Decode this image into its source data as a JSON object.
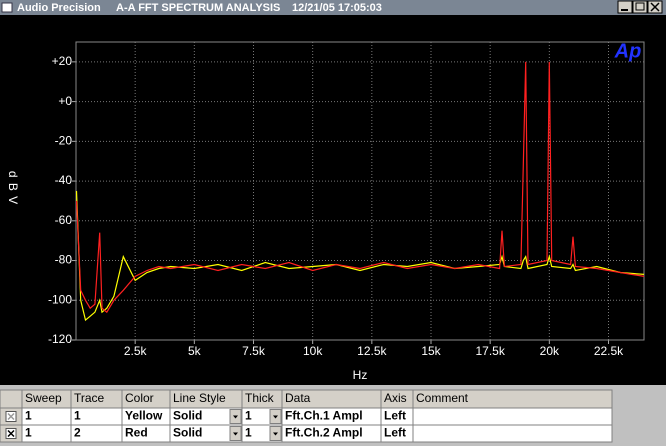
{
  "window": {
    "app": "Audio Precision",
    "title": "A-A FFT SPECTRUM ANALYSIS",
    "timestamp": "12/21/05 17:05:03"
  },
  "chart_data": {
    "type": "line",
    "ylabel": "d B V",
    "xlabel": "Hz",
    "logo": "Ap",
    "xlim": [
      0,
      24000
    ],
    "ylim": [
      -120,
      30
    ],
    "xticks": [
      {
        "value": 2500,
        "label": "2.5k"
      },
      {
        "value": 5000,
        "label": "5k"
      },
      {
        "value": 7500,
        "label": "7.5k"
      },
      {
        "value": 10000,
        "label": "10k"
      },
      {
        "value": 12500,
        "label": "12.5k"
      },
      {
        "value": 15000,
        "label": "15k"
      },
      {
        "value": 17500,
        "label": "17.5k"
      },
      {
        "value": 20000,
        "label": "20k"
      },
      {
        "value": 22500,
        "label": "22.5k"
      }
    ],
    "yticks": [
      {
        "value": 20,
        "label": "+20"
      },
      {
        "value": 0,
        "label": "+0"
      },
      -20,
      -40,
      -60,
      -80,
      -100,
      -120
    ],
    "grid": true,
    "x": [
      20,
      200,
      400,
      600,
      800,
      1000,
      1100,
      1300,
      1600,
      2000,
      2500,
      3000,
      3500,
      4000,
      5000,
      6000,
      7000,
      8000,
      9000,
      10000,
      11000,
      12000,
      13000,
      14000,
      15000,
      16000,
      17000,
      17900,
      18000,
      18100,
      18800,
      18900,
      19000,
      19100,
      19900,
      20000,
      20100,
      20900,
      21000,
      21100,
      22000,
      23000,
      24000
    ],
    "series": [
      {
        "color": "#ffff00",
        "values": [
          -45,
          -100,
          -110,
          -108,
          -106,
          -100,
          -106,
          -104,
          -98,
          -78,
          -90,
          -86,
          -84,
          -83,
          -84,
          -82,
          -85,
          -81,
          -84,
          -83,
          -82,
          -85,
          -82,
          -83,
          -81,
          -84,
          -83,
          -82,
          -78,
          -83,
          -84,
          -80,
          -78,
          -84,
          -82,
          -78,
          -83,
          -84,
          -82,
          -85,
          -83,
          -86,
          -87
        ]
      },
      {
        "color": "#ff2020",
        "values": [
          -50,
          -95,
          -100,
          -104,
          -102,
          -66,
          -104,
          -106,
          -100,
          -95,
          -88,
          -85,
          -83,
          -84,
          -82,
          -85,
          -82,
          -84,
          -81,
          -85,
          -82,
          -84,
          -81,
          -84,
          -82,
          -84,
          -82,
          -84,
          -65,
          -83,
          -82,
          -32,
          20,
          -82,
          -80,
          20,
          -80,
          -82,
          -68,
          -83,
          -84,
          -86,
          -88
        ]
      }
    ]
  },
  "table": {
    "headers": [
      "Sweep",
      "Trace",
      "Color",
      "Line Style",
      "Thick",
      "Data",
      "Axis",
      "Comment"
    ],
    "rows": [
      [
        "1",
        "1",
        "Yellow",
        "Solid",
        "1",
        "Fft.Ch.1 Ampl",
        "Left"
      ],
      [
        "1",
        "2",
        "Red",
        "Solid",
        "1",
        "Fft.Ch.2 Ampl",
        "Left"
      ]
    ]
  }
}
